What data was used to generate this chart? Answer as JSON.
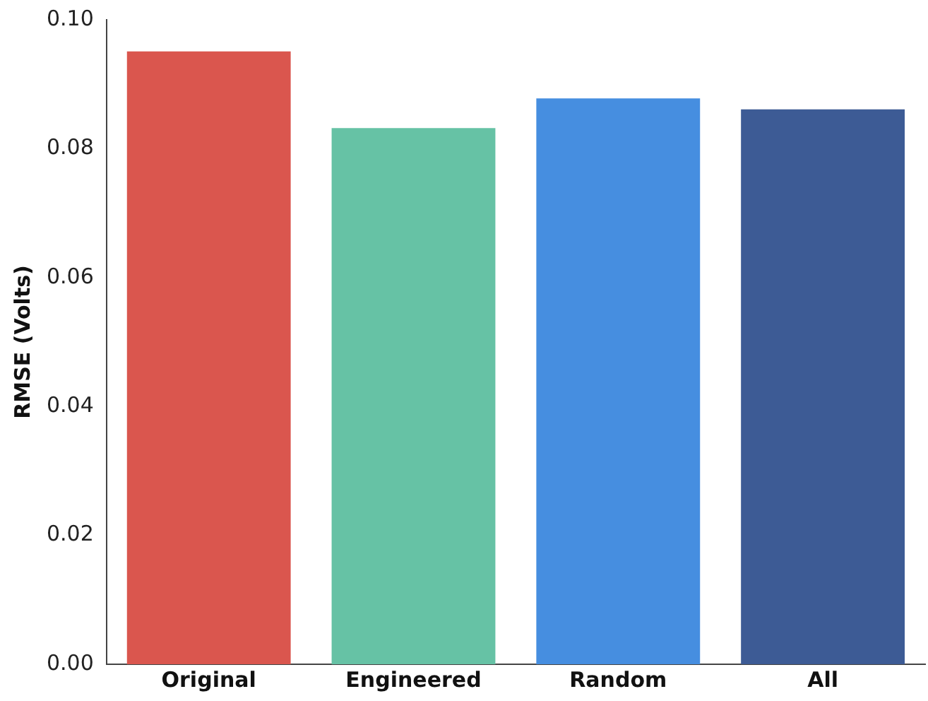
{
  "chart_data": {
    "type": "bar",
    "ylabel": "RMSE (Volts)",
    "categories": [
      "Original",
      "Engineered",
      "Random",
      "All"
    ],
    "values": [
      0.0951,
      0.0832,
      0.0878,
      0.0861
    ],
    "colors": [
      "#da564e",
      "#66c2a5",
      "#468ee0",
      "#3d5b95"
    ],
    "ylim": [
      0,
      0.1
    ],
    "yticks": [
      {
        "value": 0,
        "label": "0.00"
      },
      {
        "value": 0.02,
        "label": "0.02"
      },
      {
        "value": 0.04,
        "label": "0.04"
      },
      {
        "value": 0.06,
        "label": "0.06"
      },
      {
        "value": 0.08,
        "label": "0.08"
      },
      {
        "value": 0.1,
        "label": "0.10"
      }
    ],
    "grid": false
  }
}
